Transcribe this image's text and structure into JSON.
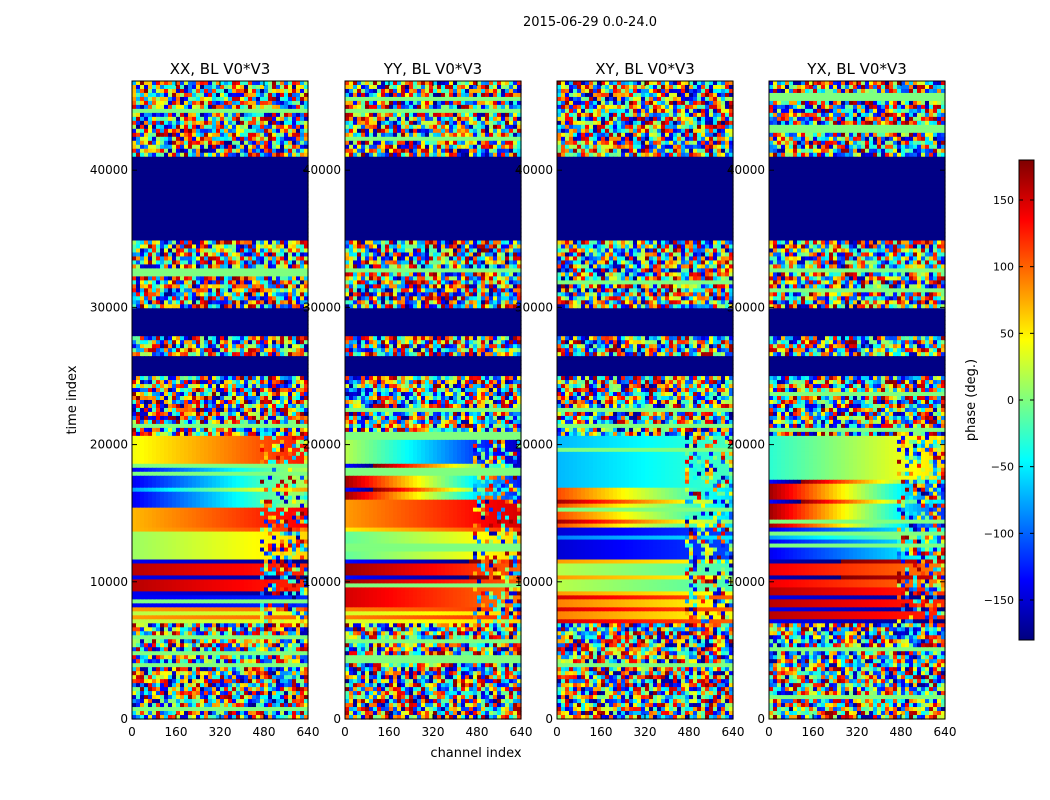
{
  "figure": {
    "suptitle": "2015-06-29 0.0-24.0",
    "ylabel": "time index",
    "xlabel": "channel index"
  },
  "colorbar": {
    "label": "phase (deg.)",
    "range": [
      -180,
      180
    ],
    "ticks": [
      -150,
      -100,
      -50,
      0,
      50,
      100,
      150
    ],
    "tick_labels": [
      "−150",
      "−100",
      "−50",
      "0",
      "50",
      "100",
      "150"
    ],
    "stops": [
      "#00007f",
      "#0000ff",
      "#007fff",
      "#00ffff",
      "#7fff7f",
      "#ffff00",
      "#ff7f00",
      "#ff0000",
      "#7f0000"
    ]
  },
  "chart_data": [
    {
      "type": "heatmap",
      "title": "XX, BL V0*V3",
      "xlabel": "channel index",
      "ylabel": "time index",
      "xlim": [
        0,
        640
      ],
      "ylim": [
        0,
        46500
      ],
      "x_ticks": [
        0,
        160,
        320,
        480,
        640
      ],
      "y_ticks": [
        0,
        10000,
        20000,
        30000,
        40000
      ],
      "value_units": "phase (deg.)",
      "bands": [
        {
          "t0": 0,
          "t1": 7000,
          "pattern": "noise"
        },
        {
          "t0": 7000,
          "t1": 8000,
          "pattern": "gradient",
          "start": 20,
          "end": 40,
          "stripe": 2
        },
        {
          "t0": 8000,
          "t1": 9000,
          "pattern": "gradient",
          "start": -140,
          "end": -120
        },
        {
          "t0": 9000,
          "t1": 11500,
          "pattern": "gradient",
          "start": 160,
          "end": 120,
          "stripe": 4
        },
        {
          "t0": 11500,
          "t1": 14000,
          "pattern": "gradient",
          "start": 10,
          "end": 60,
          "stripe": 8
        },
        {
          "t0": 14000,
          "t1": 15500,
          "pattern": "gradient",
          "start": 70,
          "end": 140
        },
        {
          "t0": 15500,
          "t1": 18500,
          "pattern": "gradient",
          "start": -140,
          "end": 20,
          "stripe": 6
        },
        {
          "t0": 18500,
          "t1": 20500,
          "pattern": "gradient",
          "start": 40,
          "end": 130
        },
        {
          "t0": 20500,
          "t1": 25000,
          "pattern": "noise"
        },
        {
          "t0": 25000,
          "t1": 26500,
          "pattern": "solid",
          "value": -178
        },
        {
          "t0": 26500,
          "t1": 28000,
          "pattern": "noise"
        },
        {
          "t0": 28000,
          "t1": 30000,
          "pattern": "solid",
          "value": -178
        },
        {
          "t0": 30000,
          "t1": 35000,
          "pattern": "noise"
        },
        {
          "t0": 35000,
          "t1": 41000,
          "pattern": "solid",
          "value": -178
        },
        {
          "t0": 41000,
          "t1": 46500,
          "pattern": "noise"
        }
      ]
    },
    {
      "type": "heatmap",
      "title": "YY, BL V0*V3",
      "xlabel": "channel index",
      "ylabel": "time index",
      "xlim": [
        0,
        640
      ],
      "ylim": [
        0,
        46500
      ],
      "x_ticks": [
        0,
        160,
        320,
        480,
        640
      ],
      "y_ticks": [
        0,
        10000,
        20000,
        30000,
        40000
      ],
      "value_units": "phase (deg.)",
      "bands": [
        {
          "t0": 0,
          "t1": 7000,
          "pattern": "noise"
        },
        {
          "t0": 7000,
          "t1": 8000,
          "pattern": "gradient",
          "start": 30,
          "end": 60,
          "stripe": 2
        },
        {
          "t0": 8000,
          "t1": 9500,
          "pattern": "gradient",
          "start": 150,
          "end": 90
        },
        {
          "t0": 9500,
          "t1": 11500,
          "pattern": "gradient",
          "start": 170,
          "end": 100,
          "stripe": 4
        },
        {
          "t0": 11500,
          "t1": 14000,
          "pattern": "gradient",
          "start": -10,
          "end": 60,
          "stripe": 8
        },
        {
          "t0": 14000,
          "t1": 16000,
          "pattern": "gradient",
          "start": 80,
          "end": 150
        },
        {
          "t0": 16000,
          "t1": 18500,
          "pattern": "gradient",
          "start": 170,
          "end": -130,
          "stripe": 6
        },
        {
          "t0": 18500,
          "t1": 20500,
          "pattern": "gradient",
          "start": 20,
          "end": -160
        }
      ]
    },
    {
      "type": "heatmap",
      "title": "XY, BL V0*V3",
      "xlabel": "channel index",
      "ylabel": "time index",
      "xlim": [
        0,
        640
      ],
      "ylim": [
        0,
        46500
      ],
      "x_ticks": [
        0,
        160,
        320,
        480,
        640
      ],
      "y_ticks": [
        0,
        10000,
        20000,
        30000,
        40000
      ],
      "value_units": "phase (deg.)",
      "bands": [
        {
          "t0": 0,
          "t1": 7000,
          "pattern": "noise"
        },
        {
          "t0": 7000,
          "t1": 9000,
          "pattern": "gradient",
          "start": 90,
          "end": 40,
          "stripe": 3
        },
        {
          "t0": 9000,
          "t1": 11500,
          "pattern": "gradient",
          "start": 20,
          "end": -20,
          "stripe": 4
        },
        {
          "t0": 11500,
          "t1": 14000,
          "pattern": "gradient",
          "start": -150,
          "end": -110,
          "stripe": 6
        },
        {
          "t0": 14000,
          "t1": 17000,
          "pattern": "gradient",
          "start": 110,
          "end": -60,
          "stripe": 5
        },
        {
          "t0": 17000,
          "t1": 20500,
          "pattern": "gradient",
          "start": -70,
          "end": -20
        }
      ]
    },
    {
      "type": "heatmap",
      "title": "YX, BL V0*V3",
      "xlabel": "channel index",
      "ylabel": "time index",
      "xlim": [
        0,
        640
      ],
      "ylim": [
        0,
        46500
      ],
      "x_ticks": [
        0,
        160,
        320,
        480,
        640
      ],
      "y_ticks": [
        0,
        10000,
        20000,
        30000,
        40000
      ],
      "value_units": "phase (deg.)",
      "bands": [
        {
          "t0": 0,
          "t1": 7000,
          "pattern": "noise"
        },
        {
          "t0": 7000,
          "t1": 9500,
          "pattern": "gradient",
          "start": 160,
          "end": 120,
          "stripe": 3
        },
        {
          "t0": 9500,
          "t1": 11500,
          "pattern": "gradient",
          "start": 140,
          "end": 90,
          "stripe": 4
        },
        {
          "t0": 11500,
          "t1": 14000,
          "pattern": "gradient",
          "start": -140,
          "end": -30,
          "stripe": 6
        },
        {
          "t0": 14000,
          "t1": 17500,
          "pattern": "gradient",
          "start": 170,
          "end": -120,
          "stripe": 5
        },
        {
          "t0": 17500,
          "t1": 20500,
          "pattern": "gradient",
          "start": -30,
          "end": 60
        }
      ]
    }
  ]
}
